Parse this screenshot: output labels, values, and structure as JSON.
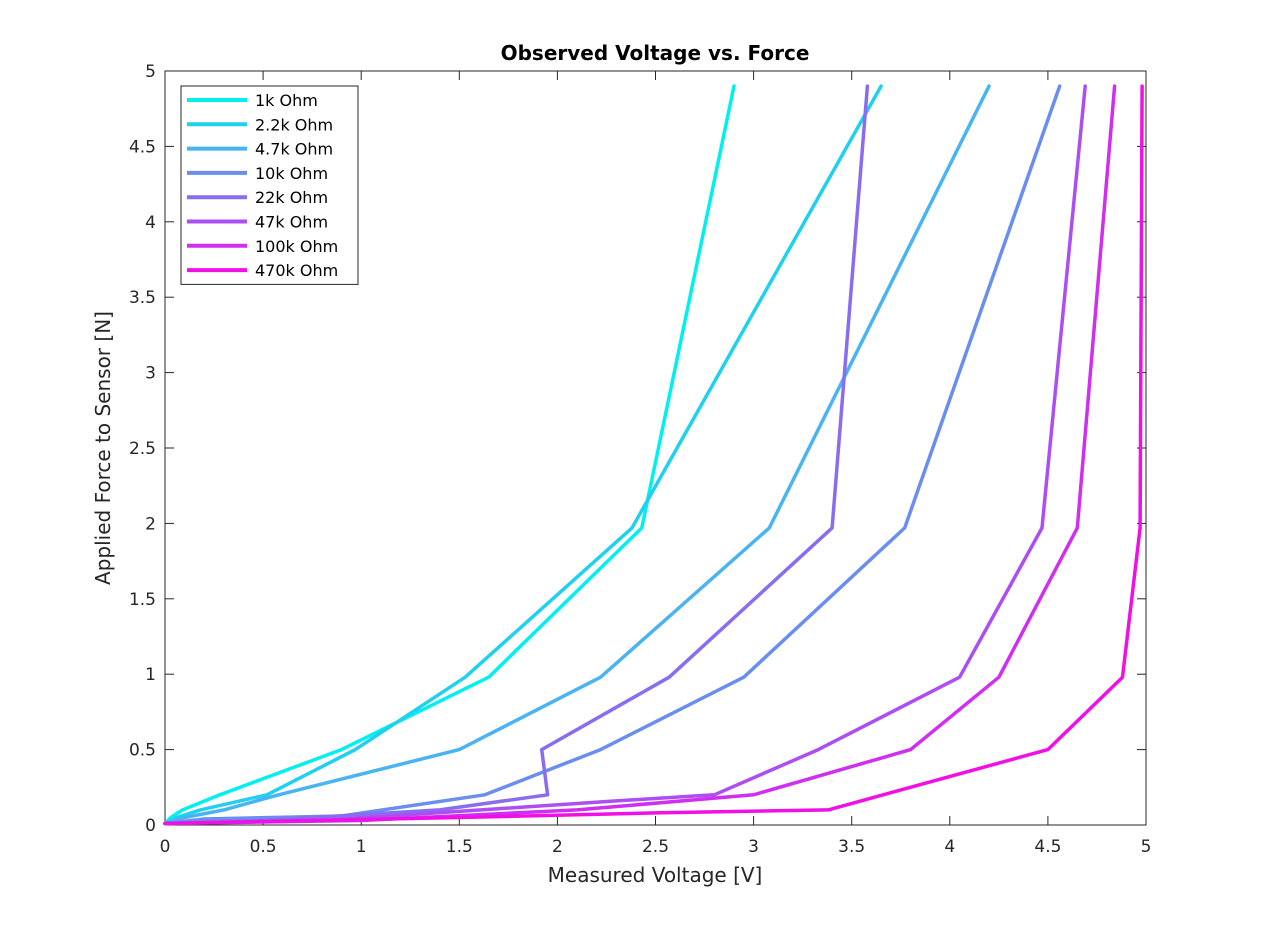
{
  "chart_data": {
    "type": "line",
    "title": "Observed Voltage vs. Force",
    "xlabel": "Measured Voltage [V]",
    "ylabel": "Applied Force to Sensor [N]",
    "xlim": [
      0,
      5
    ],
    "ylim": [
      0,
      5
    ],
    "xticks": [
      "0",
      "0.5",
      "1",
      "1.5",
      "2",
      "2.5",
      "3",
      "3.5",
      "4",
      "4.5",
      "5"
    ],
    "yticks": [
      "0",
      "0.5",
      "1",
      "1.5",
      "2",
      "2.5",
      "3",
      "3.5",
      "4",
      "4.5",
      "5"
    ],
    "grid": false,
    "legend_position": "top-left",
    "series": [
      {
        "name": "1k Ohm",
        "color": "#00f0f0",
        "points": [
          [
            0,
            0.01
          ],
          [
            0.03,
            0.05
          ],
          [
            0.09,
            0.1
          ],
          [
            0.28,
            0.2
          ],
          [
            0.9,
            0.5
          ],
          [
            1.65,
            0.98
          ],
          [
            2.43,
            1.97
          ],
          [
            2.9,
            4.9
          ]
        ]
      },
      {
        "name": "2.2k Ohm",
        "color": "#20d0f0",
        "points": [
          [
            0,
            0.01
          ],
          [
            0.06,
            0.05
          ],
          [
            0.18,
            0.1
          ],
          [
            0.52,
            0.2
          ],
          [
            0.97,
            0.5
          ],
          [
            1.53,
            0.98
          ],
          [
            2.38,
            1.97
          ],
          [
            3.65,
            4.9
          ]
        ]
      },
      {
        "name": "4.7k Ohm",
        "color": "#4ab4f2",
        "points": [
          [
            0,
            0.01
          ],
          [
            0.1,
            0.05
          ],
          [
            0.3,
            0.1
          ],
          [
            0.58,
            0.2
          ],
          [
            1.5,
            0.5
          ],
          [
            2.22,
            0.98
          ],
          [
            3.08,
            1.97
          ],
          [
            4.2,
            4.9
          ]
        ]
      },
      {
        "name": "10k Ohm",
        "color": "#6a8ef0",
        "points": [
          [
            0,
            0.01
          ],
          [
            0.2,
            0.04
          ],
          [
            0.9,
            0.06
          ],
          [
            1.63,
            0.2
          ],
          [
            2.22,
            0.5
          ],
          [
            2.95,
            0.98
          ],
          [
            3.77,
            1.97
          ],
          [
            4.56,
            4.9
          ]
        ]
      },
      {
        "name": "22k Ohm",
        "color": "#8a6cf0",
        "points": [
          [
            0,
            0.01
          ],
          [
            0.5,
            0.03
          ],
          [
            1.4,
            0.1
          ],
          [
            1.95,
            0.2
          ],
          [
            1.92,
            0.5
          ],
          [
            2.57,
            0.98
          ],
          [
            3.4,
            1.97
          ],
          [
            3.58,
            4.9
          ]
        ]
      },
      {
        "name": "47k Ohm",
        "color": "#ac4ef2",
        "points": [
          [
            0,
            0.01
          ],
          [
            0.8,
            0.03
          ],
          [
            2.3,
            0.16
          ],
          [
            2.8,
            0.2
          ],
          [
            3.33,
            0.5
          ],
          [
            4.05,
            0.98
          ],
          [
            4.47,
            1.97
          ],
          [
            4.69,
            4.9
          ]
        ]
      },
      {
        "name": "100k Ohm",
        "color": "#d02ef0",
        "points": [
          [
            0,
            0.01
          ],
          [
            1.0,
            0.03
          ],
          [
            2.1,
            0.1
          ],
          [
            3.0,
            0.2
          ],
          [
            3.8,
            0.5
          ],
          [
            4.25,
            0.98
          ],
          [
            4.65,
            1.97
          ],
          [
            4.84,
            4.9
          ]
        ]
      },
      {
        "name": "470k Ohm",
        "color": "#f010e6",
        "points": [
          [
            0,
            0.01
          ],
          [
            1.5,
            0.05
          ],
          [
            2.5,
            0.08
          ],
          [
            3.38,
            0.1
          ],
          [
            4.5,
            0.5
          ],
          [
            4.88,
            0.98
          ],
          [
            4.97,
            1.97
          ],
          [
            4.98,
            4.9
          ]
        ]
      }
    ]
  }
}
